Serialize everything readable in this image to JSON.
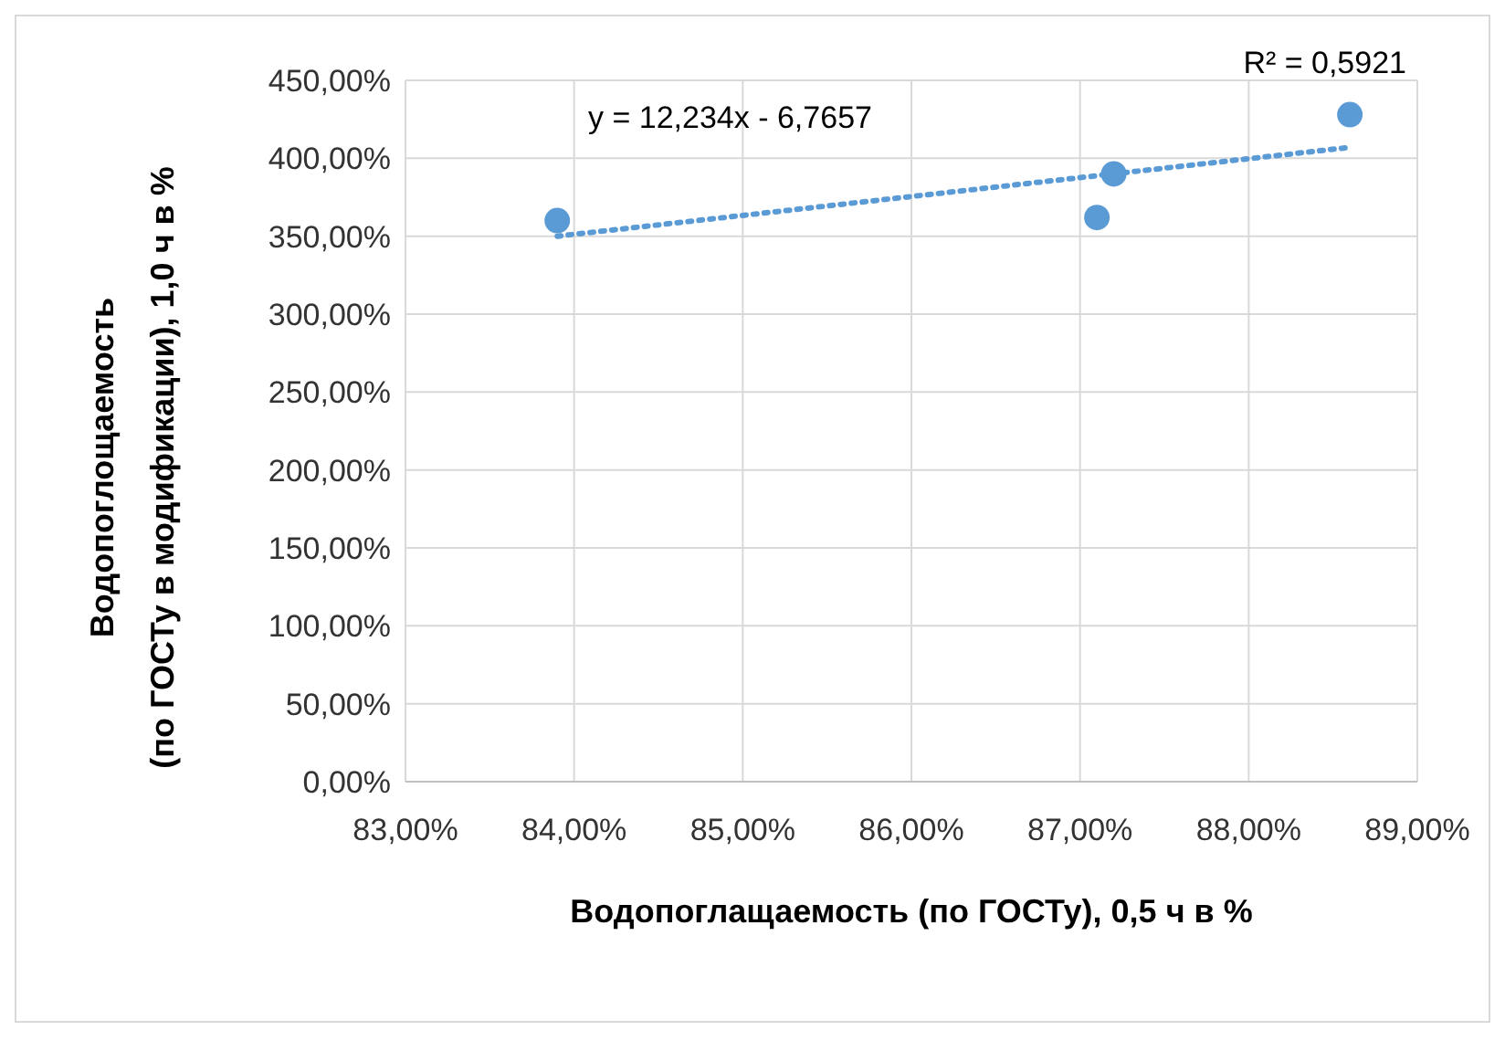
{
  "chart_data": {
    "type": "scatter",
    "xlabel": "Водопоглащаемость (по ГОСТу), 0,5 ч в %",
    "ylabel": "Водопоглощаемость\n(по ГОСТу в модификации), 1,0 ч в %",
    "x": [
      83.9,
      87.1,
      87.2,
      88.6
    ],
    "series": [
      {
        "color": "#5b9bd5",
        "marker": "circle",
        "values": [
          360,
          362,
          390,
          428
        ]
      },
      {
        "type": "line",
        "color": "#5b9bd5",
        "line_style": "dotted",
        "marker": "none",
        "x": [
          83.9,
          88.6
        ],
        "values": [
          350,
          407
        ]
      }
    ],
    "xlim": [
      83,
      89
    ],
    "xticks": [
      {
        "value": 83,
        "label": "83,00%"
      },
      {
        "value": 84,
        "label": "84,00%"
      },
      {
        "value": 85,
        "label": "85,00%"
      },
      {
        "value": 86,
        "label": "86,00%"
      },
      {
        "value": 87,
        "label": "87,00%"
      },
      {
        "value": 88,
        "label": "88,00%"
      },
      {
        "value": 89,
        "label": "89,00%"
      }
    ],
    "ylim": [
      0,
      450
    ],
    "yticks": [
      {
        "value": 0,
        "label": "0,00%"
      },
      {
        "value": 50,
        "label": "50,00%"
      },
      {
        "value": 100,
        "label": "100,00%"
      },
      {
        "value": 150,
        "label": "150,00%"
      },
      {
        "value": 200,
        "label": "200,00%"
      },
      {
        "value": 250,
        "label": "250,00%"
      },
      {
        "value": 300,
        "label": "300,00%"
      },
      {
        "value": 350,
        "label": "350,00%"
      },
      {
        "value": 400,
        "label": "400,00%"
      },
      {
        "value": 450,
        "label": "450,00%"
      }
    ],
    "grid": true,
    "annotations": [
      "y = 12,234x - 6,7657",
      "R² = 0,5921"
    ]
  }
}
